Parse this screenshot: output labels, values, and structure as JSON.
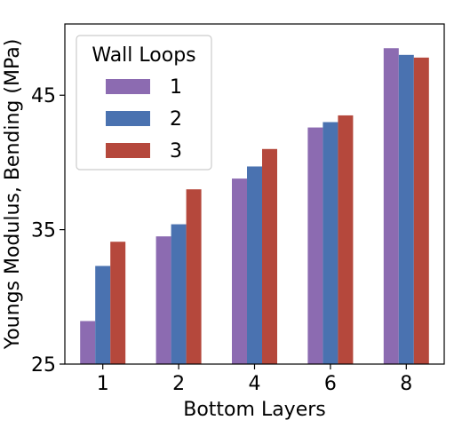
{
  "chart_data": {
    "type": "bar",
    "xlabel": "Bottom Layers",
    "ylabel": "Youngs Modulus, Bending (MPa)",
    "categories": [
      "1",
      "2",
      "4",
      "6",
      "8"
    ],
    "series": [
      {
        "name": "1",
        "values": [
          28.2,
          34.5,
          38.8,
          42.6,
          48.5
        ],
        "color": "#8c6bb1"
      },
      {
        "name": "2",
        "values": [
          32.3,
          35.4,
          39.7,
          43.0,
          48.0
        ],
        "color": "#4a72b0"
      },
      {
        "name": "3",
        "values": [
          34.1,
          38.0,
          41.0,
          43.5,
          47.8
        ],
        "color": "#b5483c"
      }
    ],
    "ylim": [
      25,
      50.3
    ],
    "yticks": [
      "25",
      "35",
      "45"
    ],
    "legend": {
      "title": "Wall Loops",
      "position": "top-left"
    },
    "grid": false
  }
}
